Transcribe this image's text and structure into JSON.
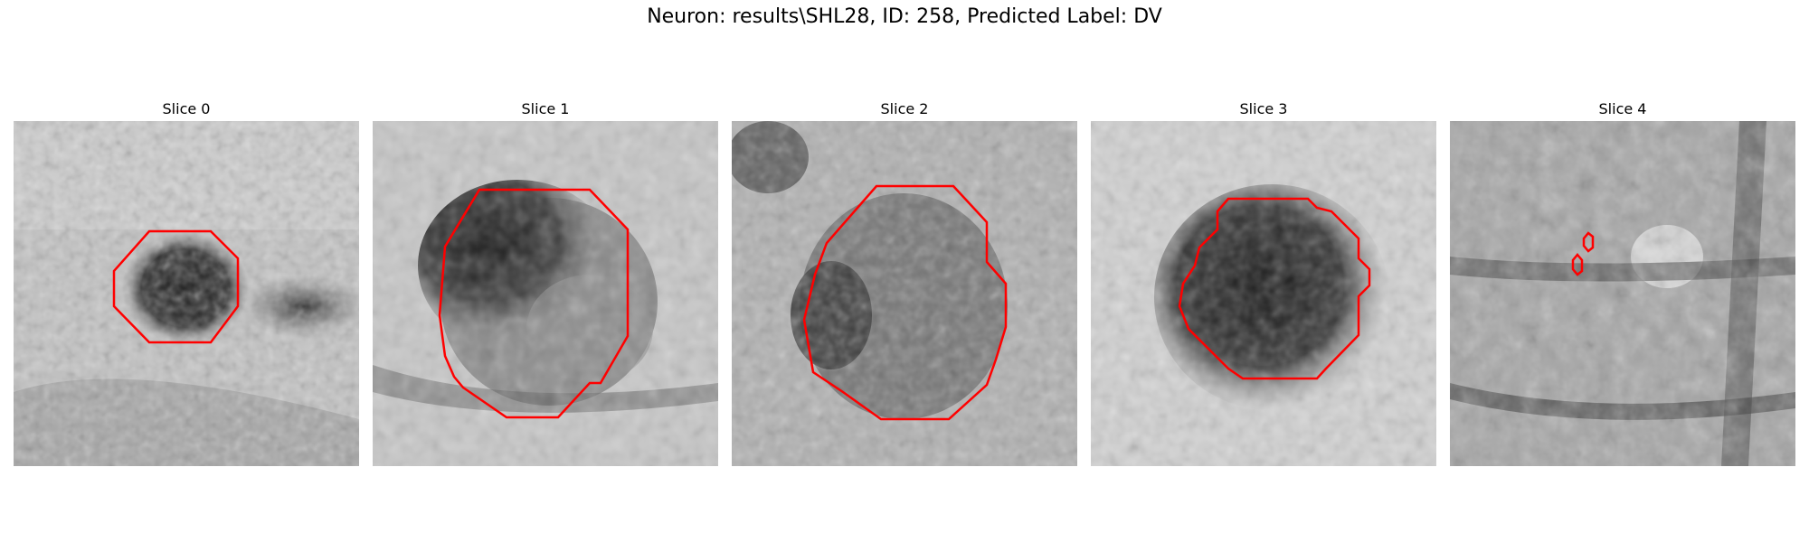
{
  "figure": {
    "title": "Neuron: results\\SHL28, ID: 258, Predicted Label: DV"
  },
  "panels": [
    {
      "title": "Slice 0"
    },
    {
      "title": "Slice 1"
    },
    {
      "title": "Slice 2"
    },
    {
      "title": "Slice 3"
    },
    {
      "title": "Slice 4"
    }
  ],
  "colors": {
    "contour": "#ff0000",
    "background": "#ffffff"
  }
}
